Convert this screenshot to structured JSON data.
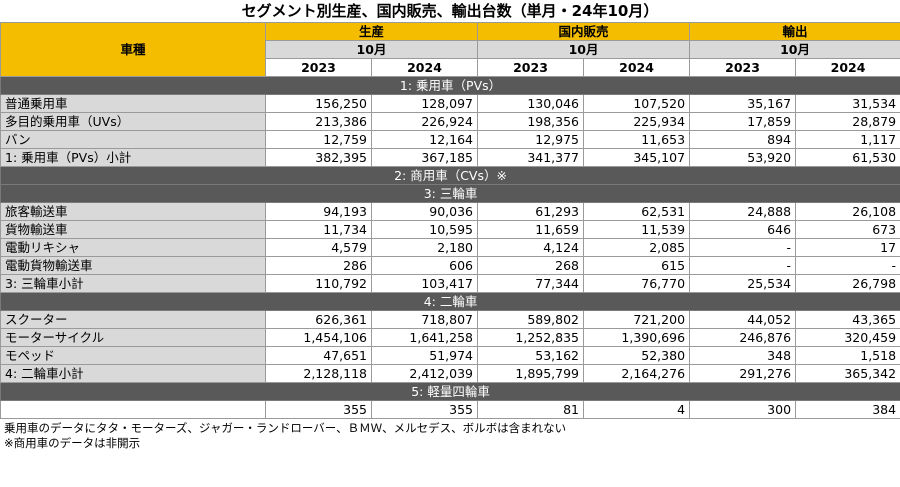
{
  "title": "セグメント別生産、国内販売、輸出台数（単月・24年10月）",
  "header": {
    "vehicle_label": "車種",
    "groups": [
      "生産",
      "国内販売",
      "輸出"
    ],
    "month": "10月",
    "years": [
      "2023",
      "2024"
    ]
  },
  "sections": [
    {
      "title": "1: 乗用車（PVs）",
      "rows": [
        {
          "label": "普通乗用車",
          "values": [
            "156,250",
            "128,097",
            "130,046",
            "107,520",
            "35,167",
            "31,534"
          ]
        },
        {
          "label": "多目的乗用車（UVs）",
          "values": [
            "213,386",
            "226,924",
            "198,356",
            "225,934",
            "17,859",
            "28,879"
          ]
        },
        {
          "label": "バン",
          "values": [
            "12,759",
            "12,164",
            "12,975",
            "11,653",
            "894",
            "1,117"
          ]
        },
        {
          "label": "1: 乗用車（PVs）小計",
          "values": [
            "382,395",
            "367,185",
            "341,377",
            "345,107",
            "53,920",
            "61,530"
          ]
        }
      ]
    },
    {
      "title": "2: 商用車（CVs）※",
      "rows": []
    },
    {
      "title": "3: 三輪車",
      "rows": [
        {
          "label": "旅客輸送車",
          "values": [
            "94,193",
            "90,036",
            "61,293",
            "62,531",
            "24,888",
            "26,108"
          ]
        },
        {
          "label": "貨物輸送車",
          "values": [
            "11,734",
            "10,595",
            "11,659",
            "11,539",
            "646",
            "673"
          ]
        },
        {
          "label": "電動リキシャ",
          "values": [
            "4,579",
            "2,180",
            "4,124",
            "2,085",
            "-",
            "17"
          ]
        },
        {
          "label": "電動貨物輸送車",
          "values": [
            "286",
            "606",
            "268",
            "615",
            "-",
            "-"
          ]
        },
        {
          "label": "3: 三輪車小計",
          "values": [
            "110,792",
            "103,417",
            "77,344",
            "76,770",
            "25,534",
            "26,798"
          ]
        }
      ]
    },
    {
      "title": "4: 二輪車",
      "rows": [
        {
          "label": "スクーター",
          "values": [
            "626,361",
            "718,807",
            "589,802",
            "721,200",
            "44,052",
            "43,365"
          ]
        },
        {
          "label": "モーターサイクル",
          "values": [
            "1,454,106",
            "1,641,258",
            "1,252,835",
            "1,390,696",
            "246,876",
            "320,459"
          ]
        },
        {
          "label": "モペッド",
          "values": [
            "47,651",
            "51,974",
            "53,162",
            "52,380",
            "348",
            "1,518"
          ]
        },
        {
          "label": "4: 二輪車小計",
          "values": [
            "2,128,118",
            "2,412,039",
            "1,895,799",
            "2,164,276",
            "291,276",
            "365,342"
          ]
        }
      ]
    },
    {
      "title": "5: 軽量四輪車",
      "rows": [
        {
          "label": "",
          "values": [
            "355",
            "355",
            "81",
            "4",
            "300",
            "384"
          ]
        }
      ]
    }
  ],
  "notes": [
    "乗用車のデータにタタ・モーターズ、ジャガー・ランドローバー、ＢＭＷ、メルセデス、ボルボは含まれない",
    "※商用車のデータは非開示"
  ]
}
